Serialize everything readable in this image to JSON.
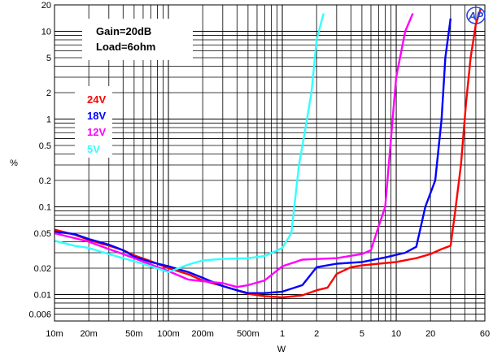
{
  "chart_data": {
    "type": "line",
    "xlabel": "W",
    "ylabel": "%",
    "x_scale": "log",
    "y_scale": "log",
    "xlim": [
      0.01,
      60
    ],
    "ylim": [
      0.005,
      20
    ],
    "x_ticks": [
      {
        "v": 0.01,
        "label": "10m"
      },
      {
        "v": 0.02,
        "label": "20m"
      },
      {
        "v": 0.05,
        "label": "50m"
      },
      {
        "v": 0.1,
        "label": "100m"
      },
      {
        "v": 0.2,
        "label": "200m"
      },
      {
        "v": 0.5,
        "label": "500m"
      },
      {
        "v": 1,
        "label": "1"
      },
      {
        "v": 2,
        "label": "2"
      },
      {
        "v": 5,
        "label": "5"
      },
      {
        "v": 10,
        "label": "10"
      },
      {
        "v": 20,
        "label": "20"
      },
      {
        "v": 60,
        "label": "60"
      }
    ],
    "y_ticks": [
      {
        "v": 20,
        "label": "20"
      },
      {
        "v": 10,
        "label": "10"
      },
      {
        "v": 5,
        "label": "5"
      },
      {
        "v": 2,
        "label": "2"
      },
      {
        "v": 1,
        "label": "1"
      },
      {
        "v": 0.5,
        "label": "0.5"
      },
      {
        "v": 0.2,
        "label": "0.2"
      },
      {
        "v": 0.1,
        "label": "0.1"
      },
      {
        "v": 0.05,
        "label": "0.05"
      },
      {
        "v": 0.02,
        "label": "0.02"
      },
      {
        "v": 0.01,
        "label": "0.01"
      },
      {
        "v": 0.006,
        "label": "0.006"
      }
    ],
    "grid": true,
    "annotation": {
      "lines": [
        "Gain=20dB",
        "Load=6ohm"
      ]
    },
    "legend": {
      "placement": "left",
      "entries": [
        {
          "label": "24V",
          "color": "#ff0000"
        },
        {
          "label": "18V",
          "color": "#0000ff"
        },
        {
          "label": "12V",
          "color": "#ff00ff"
        },
        {
          "label": "5V",
          "color": "#33ffff"
        }
      ]
    },
    "series": [
      {
        "name": "24V",
        "color": "#ff0000",
        "points": [
          [
            0.01,
            0.055
          ],
          [
            0.015,
            0.048
          ],
          [
            0.02,
            0.042
          ],
          [
            0.03,
            0.036
          ],
          [
            0.04,
            0.032
          ],
          [
            0.05,
            0.028
          ],
          [
            0.07,
            0.024
          ],
          [
            0.1,
            0.02
          ],
          [
            0.15,
            0.017
          ],
          [
            0.2,
            0.0145
          ],
          [
            0.3,
            0.0125
          ],
          [
            0.4,
            0.0112
          ],
          [
            0.5,
            0.0102
          ],
          [
            0.7,
            0.0096
          ],
          [
            1,
            0.0093
          ],
          [
            1.5,
            0.0098
          ],
          [
            2,
            0.0112
          ],
          [
            2.5,
            0.012
          ],
          [
            3,
            0.0172
          ],
          [
            4,
            0.0205
          ],
          [
            5,
            0.0215
          ],
          [
            7,
            0.0225
          ],
          [
            10,
            0.0235
          ],
          [
            15,
            0.026
          ],
          [
            20,
            0.029
          ],
          [
            25,
            0.033
          ],
          [
            30,
            0.036
          ],
          [
            33,
            0.09
          ],
          [
            37,
            0.3
          ],
          [
            41,
            1.5
          ],
          [
            45,
            5
          ],
          [
            50,
            12
          ],
          [
            55,
            18
          ]
        ]
      },
      {
        "name": "18V",
        "color": "#0000ff",
        "points": [
          [
            0.01,
            0.052
          ],
          [
            0.015,
            0.049
          ],
          [
            0.02,
            0.043
          ],
          [
            0.03,
            0.037
          ],
          [
            0.04,
            0.032
          ],
          [
            0.05,
            0.027
          ],
          [
            0.07,
            0.0235
          ],
          [
            0.1,
            0.021
          ],
          [
            0.15,
            0.018
          ],
          [
            0.2,
            0.0155
          ],
          [
            0.3,
            0.0125
          ],
          [
            0.4,
            0.0112
          ],
          [
            0.5,
            0.0104
          ],
          [
            0.7,
            0.0104
          ],
          [
            1,
            0.0108
          ],
          [
            1.5,
            0.0128
          ],
          [
            2,
            0.0205
          ],
          [
            3,
            0.0225
          ],
          [
            5,
            0.0235
          ],
          [
            8,
            0.0265
          ],
          [
            12,
            0.03
          ],
          [
            15,
            0.035
          ],
          [
            18,
            0.1
          ],
          [
            22,
            0.2
          ],
          [
            25,
            1.0
          ],
          [
            27,
            5
          ],
          [
            30,
            14
          ]
        ]
      },
      {
        "name": "12V",
        "color": "#ff00ff",
        "points": [
          [
            0.01,
            0.05
          ],
          [
            0.015,
            0.044
          ],
          [
            0.02,
            0.04
          ],
          [
            0.03,
            0.033
          ],
          [
            0.04,
            0.029
          ],
          [
            0.05,
            0.026
          ],
          [
            0.07,
            0.022
          ],
          [
            0.1,
            0.0185
          ],
          [
            0.15,
            0.0148
          ],
          [
            0.2,
            0.0142
          ],
          [
            0.3,
            0.0135
          ],
          [
            0.4,
            0.0122
          ],
          [
            0.5,
            0.0128
          ],
          [
            0.7,
            0.0145
          ],
          [
            1,
            0.021
          ],
          [
            1.5,
            0.025
          ],
          [
            3,
            0.026
          ],
          [
            5,
            0.029
          ],
          [
            6,
            0.032
          ],
          [
            7,
            0.06
          ],
          [
            8,
            0.1
          ],
          [
            9,
            0.6
          ],
          [
            10,
            3
          ],
          [
            12,
            10
          ],
          [
            14,
            16
          ]
        ]
      },
      {
        "name": "5V",
        "color": "#33ffff",
        "points": [
          [
            0.01,
            0.041
          ],
          [
            0.015,
            0.036
          ],
          [
            0.02,
            0.034
          ],
          [
            0.03,
            0.029
          ],
          [
            0.04,
            0.026
          ],
          [
            0.05,
            0.024
          ],
          [
            0.07,
            0.021
          ],
          [
            0.1,
            0.018
          ],
          [
            0.15,
            0.022
          ],
          [
            0.2,
            0.0245
          ],
          [
            0.3,
            0.0255
          ],
          [
            0.5,
            0.026
          ],
          [
            0.7,
            0.0275
          ],
          [
            1,
            0.034
          ],
          [
            1.2,
            0.05
          ],
          [
            1.4,
            0.3
          ],
          [
            1.6,
            0.8
          ],
          [
            1.8,
            2
          ],
          [
            2,
            8
          ],
          [
            2.3,
            16
          ]
        ]
      }
    ]
  },
  "logo": {
    "text": "AP",
    "color": "#2a44d8"
  }
}
